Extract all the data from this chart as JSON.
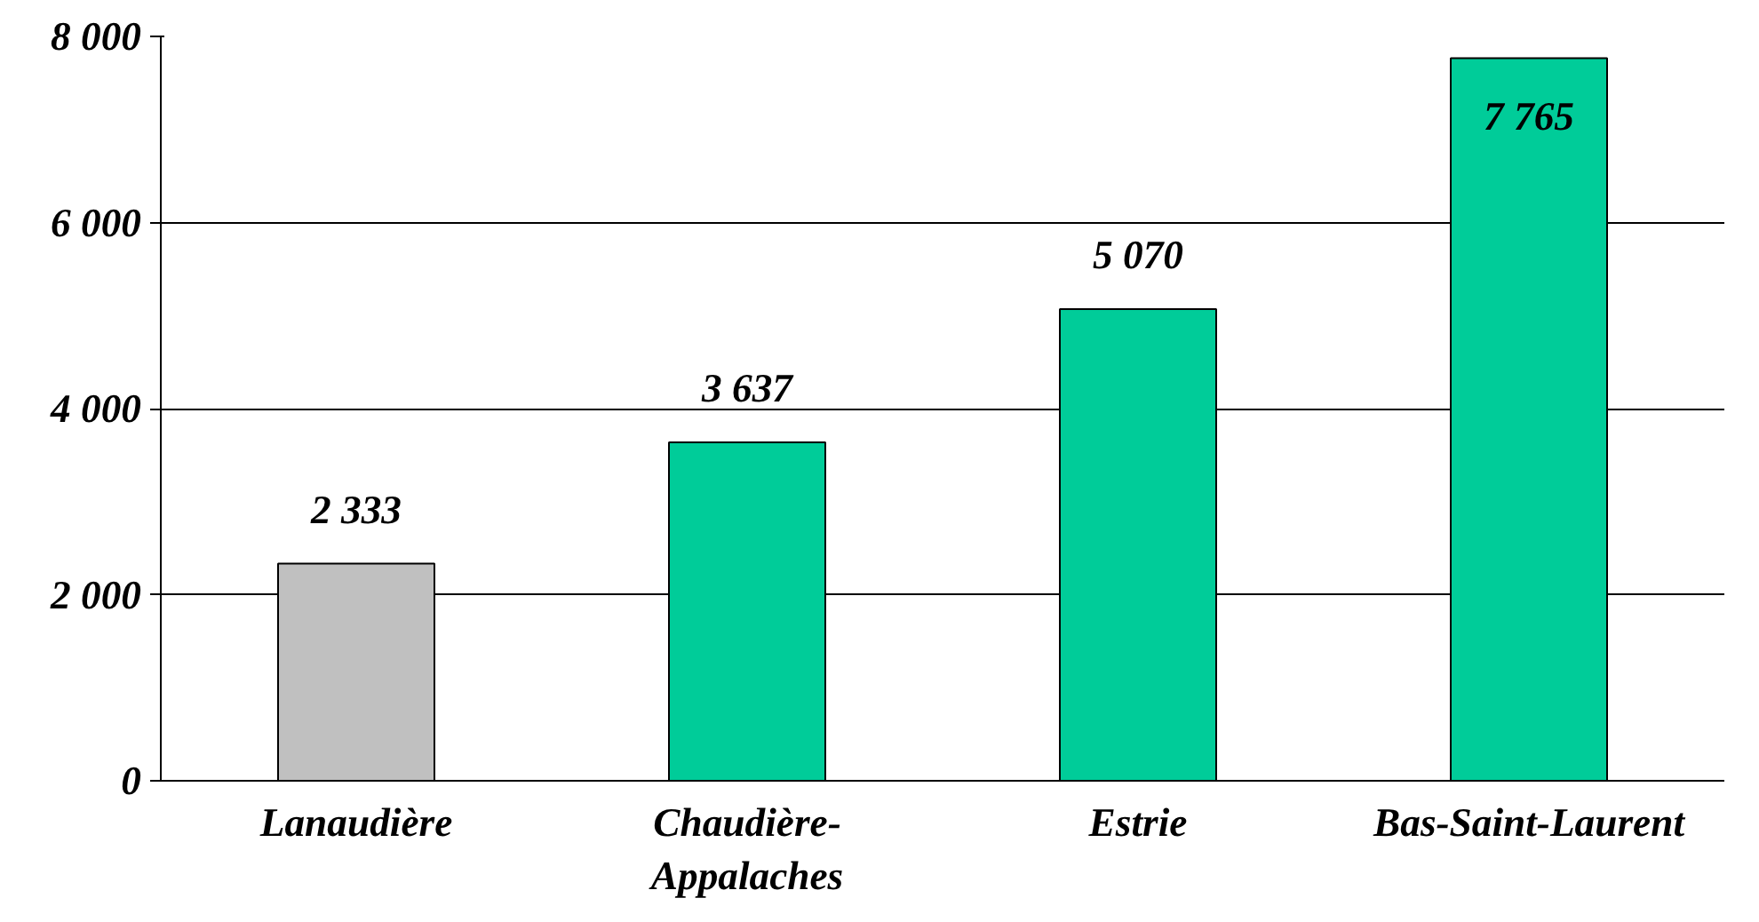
{
  "chart_data": {
    "type": "bar",
    "categories": [
      "Lanaudière",
      "Chaudière-\nAppalaches",
      "Estrie",
      "Bas-Saint-Laurent"
    ],
    "values": [
      2333,
      3637,
      5070,
      7765
    ],
    "colors": [
      "#c0c0c0",
      "#00cc99",
      "#00cc99",
      "#00cc99"
    ],
    "value_labels": [
      "2 333",
      "3 637",
      "5 070",
      "7 765"
    ],
    "ylim": [
      0,
      8000
    ],
    "yticks": [
      {
        "value": 0,
        "label": "0"
      },
      {
        "value": 2000,
        "label": "2 000"
      },
      {
        "value": 4000,
        "label": "4 000"
      },
      {
        "value": 6000,
        "label": "6 000"
      },
      {
        "value": 8000,
        "label": "8 000"
      }
    ],
    "grid": "y"
  }
}
